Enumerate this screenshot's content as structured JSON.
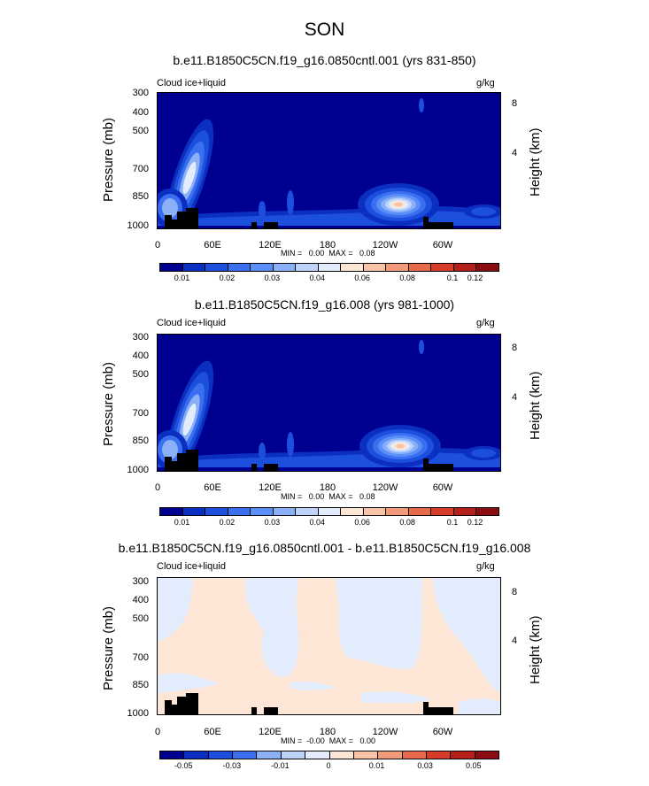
{
  "page_title": "SON",
  "colors": {
    "levels": [
      "#000090",
      "#0b2fc0",
      "#1c4fdc",
      "#3a6ff0",
      "#5b8ff8",
      "#8bb0f8",
      "#bcd4fa",
      "#e3ecfc",
      "#fde6d6",
      "#f9c3a6",
      "#f29b7a",
      "#e76a4c",
      "#d53d2a",
      "#b5201a",
      "#8a0c10"
    ],
    "continent": "#000000"
  },
  "chart_data": [
    {
      "type": "heatmap",
      "title": "b.e11.B1850C5CN.f19_g16.0850cntl.001 (yrs 831-850)",
      "variable": "Cloud ice+liquid",
      "units": "g/kg",
      "ylabel": "Pressure (mb)",
      "y2label": "Height (km)",
      "yticks": [
        "300",
        "400",
        "500",
        "700",
        "850",
        "1000"
      ],
      "y2ticks": [
        "8",
        "4"
      ],
      "xticks": [
        "0",
        "60E",
        "120E",
        "180",
        "120W",
        "60W"
      ],
      "ylim": [
        1000,
        300
      ],
      "xlim": [
        0,
        360
      ],
      "min_max_text": "MIN =   0.00  MAX =   0.08",
      "colorbar_labels": [
        "0.01",
        "0.02",
        "0.03",
        "0.04",
        "0.06",
        "0.08",
        "0.1",
        "0.12"
      ],
      "max_value": 0.08,
      "max_location": {
        "lon": 255,
        "pressure": 860
      }
    },
    {
      "type": "heatmap",
      "title": "b.e11.B1850C5CN.f19_g16.008 (yrs 981-1000)",
      "variable": "Cloud ice+liquid",
      "units": "g/kg",
      "ylabel": "Pressure (mb)",
      "y2label": "Height (km)",
      "yticks": [
        "300",
        "400",
        "500",
        "700",
        "850",
        "1000"
      ],
      "y2ticks": [
        "8",
        "4"
      ],
      "xticks": [
        "0",
        "60E",
        "120E",
        "180",
        "120W",
        "60W"
      ],
      "ylim": [
        1000,
        300
      ],
      "xlim": [
        0,
        360
      ],
      "min_max_text": "MIN =   0.00  MAX =   0.08",
      "colorbar_labels": [
        "0.01",
        "0.02",
        "0.03",
        "0.04",
        "0.06",
        "0.08",
        "0.1",
        "0.12"
      ],
      "max_value": 0.08,
      "max_location": {
        "lon": 257,
        "pressure": 865
      }
    },
    {
      "type": "heatmap",
      "title": "b.e11.B1850C5CN.f19_g16.0850cntl.001 - b.e11.B1850C5CN.f19_g16.008",
      "variable": "Cloud ice+liquid",
      "units": "g/kg",
      "ylabel": "Pressure (mb)",
      "y2label": "Height (km)",
      "yticks": [
        "300",
        "400",
        "500",
        "700",
        "850",
        "1000"
      ],
      "y2ticks": [
        "8",
        "4"
      ],
      "xticks": [
        "0",
        "60E",
        "120E",
        "180",
        "120W",
        "60W"
      ],
      "ylim": [
        1000,
        300
      ],
      "xlim": [
        0,
        360
      ],
      "min_max_text": "MIN =  -0.00  MAX =   0.00",
      "colorbar_labels": [
        "-0.05",
        "-0.03",
        "-0.01",
        "0",
        "0.01",
        "0.03",
        "0.05"
      ]
    }
  ]
}
